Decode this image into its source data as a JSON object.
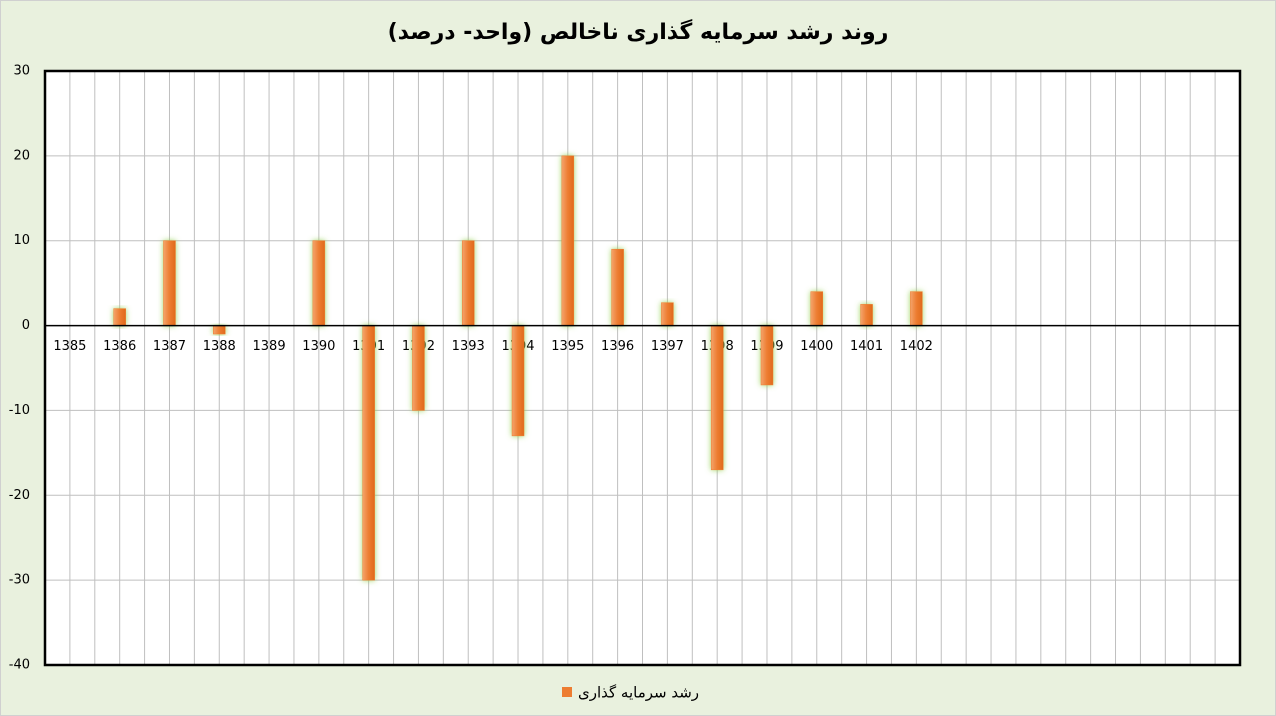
{
  "chart_data": {
    "type": "bar",
    "title": "روند رشد سرمایه گذاری ناخالص (واحد- درصد)",
    "categories": [
      "1385",
      "1386",
      "1387",
      "1388",
      "1389",
      "1390",
      "1391",
      "1392",
      "1393",
      "1394",
      "1395",
      "1396",
      "1397",
      "1398",
      "1399",
      "1400",
      "1401",
      "1402",
      null,
      null,
      null,
      null,
      null,
      null
    ],
    "series": [
      {
        "name": "رشد سرمایه گذاری",
        "color": "#ed7d31",
        "values": [
          0,
          2,
          10,
          -1,
          0,
          10,
          -30,
          -10,
          10,
          -13,
          20,
          9,
          2.7,
          -17,
          -7,
          4,
          2.5,
          4,
          null,
          null,
          null,
          null,
          null,
          null
        ]
      }
    ],
    "ylim": [
      -40,
      30
    ],
    "yticks": [
      -40,
      -30,
      -20,
      -10,
      0,
      10,
      20,
      30
    ],
    "grid": true,
    "legend": "bottom"
  }
}
